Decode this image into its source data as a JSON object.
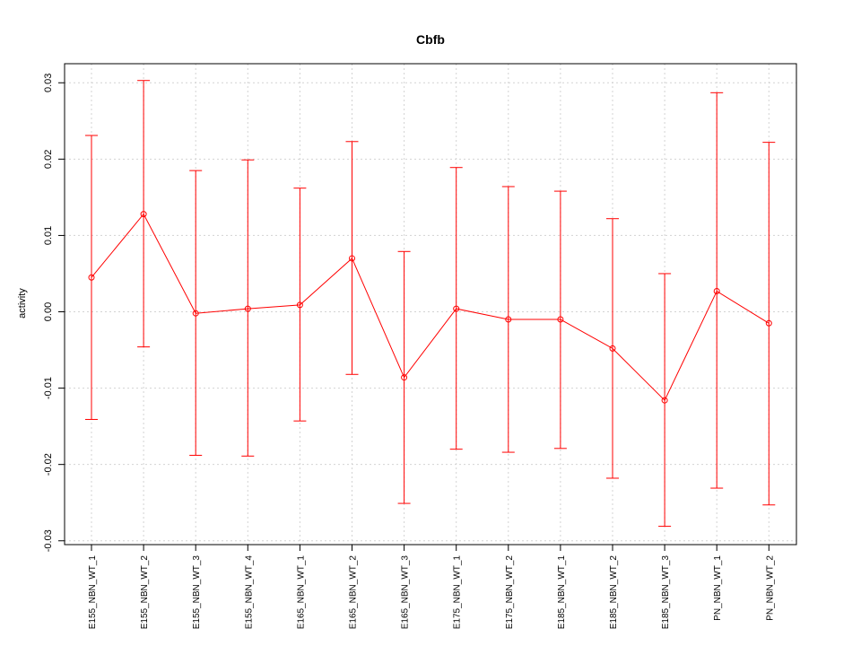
{
  "chart_data": {
    "type": "line",
    "title": "Cbfb",
    "xlabel": "",
    "ylabel": "activity",
    "ylim": [
      -0.0305,
      0.0325
    ],
    "yticks": [
      -0.03,
      -0.02,
      -0.01,
      0.0,
      0.01,
      0.02,
      0.03
    ],
    "ytick_labels": [
      "-0.03",
      "-0.02",
      "-0.01",
      "0.00",
      "0.01",
      "0.02",
      "0.03"
    ],
    "grid": true,
    "line_color": "#ff0000",
    "grid_color": "#d3d3d3",
    "categories": [
      "E155_NBN_WT_1",
      "E155_NBN_WT_2",
      "E155_NBN_WT_3",
      "E155_NBN_WT_4",
      "E165_NBN_WT_1",
      "E165_NBN_WT_2",
      "E165_NBN_WT_3",
      "E175_NBN_WT_1",
      "E175_NBN_WT_2",
      "E185_NBN_WT_1",
      "E185_NBN_WT_2",
      "E185_NBN_WT_3",
      "PN_NBN_WT_1",
      "PN_NBN_WT_2"
    ],
    "series": [
      {
        "values": [
          0.0045,
          0.0128,
          -0.0002,
          0.0004,
          0.0009,
          0.007,
          -0.0086,
          0.0004,
          -0.001,
          -0.001,
          -0.0048,
          -0.0116,
          0.0027,
          -0.0015
        ],
        "upper": [
          0.0231,
          0.0303,
          0.0185,
          0.0199,
          0.0162,
          0.0223,
          0.0079,
          0.0189,
          0.0164,
          0.0158,
          0.0122,
          0.005,
          0.0287,
          0.0222
        ],
        "lower": [
          -0.0141,
          -0.0046,
          -0.0188,
          -0.0189,
          -0.0143,
          -0.0082,
          -0.0251,
          -0.018,
          -0.0184,
          -0.0179,
          -0.0218,
          -0.0281,
          -0.0231,
          -0.0253
        ]
      }
    ]
  }
}
